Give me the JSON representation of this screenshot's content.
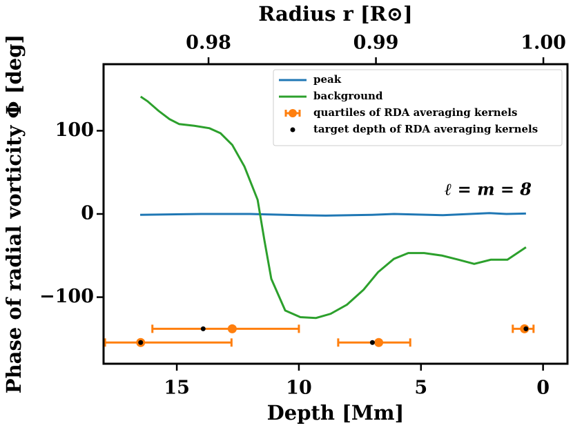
{
  "chart_data": {
    "type": "line",
    "xlabel": "Depth [Mm]",
    "ylabel": "Phase of radial vorticity Φ [deg]",
    "x2label": "Radius r [R⊙]",
    "annotation": "ℓ = m = 8",
    "xlim": [
      18,
      -1
    ],
    "ylim": [
      -180,
      180
    ],
    "x2lim": [
      0.97373,
      1.00144
    ],
    "xticks": [
      15,
      10,
      5,
      0
    ],
    "yticks": [
      {
        "value": -100,
        "label": "−100"
      },
      0,
      100
    ],
    "x2ticks": [
      {
        "value": 0.98,
        "label": "0.98"
      },
      {
        "value": 0.99,
        "label": "0.99"
      },
      {
        "value": 1.0,
        "label": "1.00"
      }
    ],
    "legend": "upper right",
    "series": [
      {
        "name": "peak",
        "kind": "line",
        "color": "#1f77b4",
        "x": [
          16.5,
          14,
          12,
          10,
          8.9,
          7,
          6.1,
          4.1,
          2.2,
          1.5,
          0.7
        ],
        "values": [
          -1,
          0,
          0,
          -1.5,
          -2,
          -1,
          0,
          -1.5,
          1,
          0,
          0.5
        ]
      },
      {
        "name": "background",
        "kind": "line",
        "color": "#2ca02c",
        "x": [
          16.48,
          16.2,
          15.75,
          15.3,
          14.9,
          14.28,
          13.66,
          13.21,
          12.73,
          12.23,
          11.69,
          11.41,
          11.13,
          10.56,
          9.94,
          9.3,
          8.7,
          8.03,
          7.35,
          6.76,
          6.11,
          5.52,
          4.87,
          4.14,
          3.46,
          2.82,
          2.14,
          1.46,
          0.7
        ],
        "values": [
          141,
          135.5,
          124,
          114,
          108,
          106,
          103,
          97,
          83,
          57,
          17,
          -32,
          -78,
          -116,
          -124,
          -125,
          -120,
          -109,
          -91,
          -70,
          -54,
          -47,
          -47,
          -50,
          -55,
          -60,
          -55,
          -55,
          -40
        ]
      },
      {
        "name": "quartiles of RDA averaging kernels",
        "kind": "errorbar",
        "color": "#ff7f0e",
        "x": [
          12.73,
          16.48,
          6.73,
          0.76
        ],
        "values": [
          -138,
          -154.5,
          -154.5,
          -138
        ],
        "x_low": [
          16.0,
          17.94,
          8.39,
          1.24
        ],
        "x_high": [
          10.0,
          12.76,
          5.44,
          0.39
        ]
      },
      {
        "name": "target depth of RDA averaging kernels",
        "kind": "scatter",
        "color": "#000000",
        "x": [
          13.92,
          16.48,
          6.99,
          0.7
        ],
        "values": [
          -138,
          -154.5,
          -154.5,
          -138
        ]
      }
    ]
  }
}
